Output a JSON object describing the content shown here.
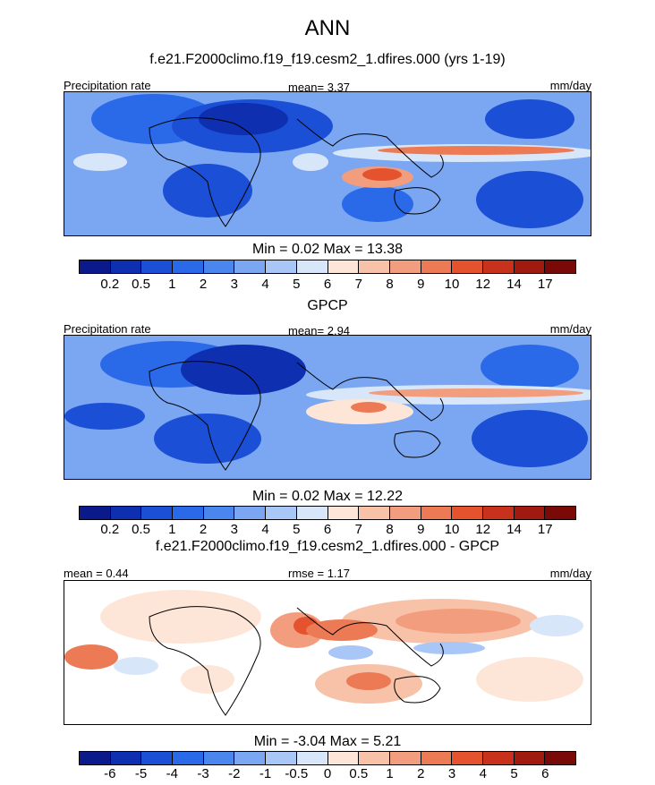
{
  "title": "ANN",
  "panels": [
    {
      "subtitle": "f.e21.F2000climo.f19_f19.cesm2_1.dfires.000 (yrs 1-19)",
      "left_label": "Precipitation rate",
      "center_label": "mean=   3.37",
      "right_label": "mm/day",
      "min_max": "Min =   0.02 Max =  13.38",
      "cbar_labels": [
        "0.2",
        "0.5",
        "1",
        "2",
        "3",
        "4",
        "5",
        "6",
        "7",
        "8",
        "9",
        "10",
        "12",
        "14",
        "17"
      ]
    },
    {
      "subtitle": "GPCP",
      "left_label": "Precipitation rate",
      "center_label": "mean=   2.94",
      "right_label": "mm/day",
      "min_max": "Min =   0.02 Max =  12.22",
      "cbar_labels": [
        "0.2",
        "0.5",
        "1",
        "2",
        "3",
        "4",
        "5",
        "6",
        "7",
        "8",
        "9",
        "10",
        "12",
        "14",
        "17"
      ]
    },
    {
      "subtitle": "f.e21.F2000climo.f19_f19.cesm2_1.dfires.000 - GPCP",
      "left_label": "mean =   0.44",
      "center_label": "rmse =   1.17",
      "right_label": "mm/day",
      "min_max": "Min =  -3.04 Max =   5.21",
      "cbar_labels": [
        "-6",
        "-5",
        "-4",
        "-3",
        "-2",
        "-1",
        "-0.5",
        "0",
        "0.5",
        "1",
        "2",
        "3",
        "4",
        "5",
        "6"
      ]
    }
  ],
  "colors": {
    "precip_scale": [
      "#0a1a8a",
      "#0d2fb0",
      "#1a4fd6",
      "#2a6ae8",
      "#4a86ee",
      "#7aa6f2",
      "#a8c6f6",
      "#d8e6fa",
      "#fde6d8",
      "#f8c2a8",
      "#f29e7e",
      "#ec7a54",
      "#e4532e",
      "#c8321c",
      "#a01a10",
      "#7a0a08"
    ],
    "diff_scale": [
      "#0a1a8a",
      "#0d2fb0",
      "#1a4fd6",
      "#2a6ae8",
      "#4a86ee",
      "#7aa6f2",
      "#a8c6f6",
      "#d8e6fa",
      "#fde6d8",
      "#f8c2a8",
      "#f29e7e",
      "#ec7a54",
      "#e4532e",
      "#c8321c",
      "#a01a10",
      "#7a0a08"
    ]
  }
}
